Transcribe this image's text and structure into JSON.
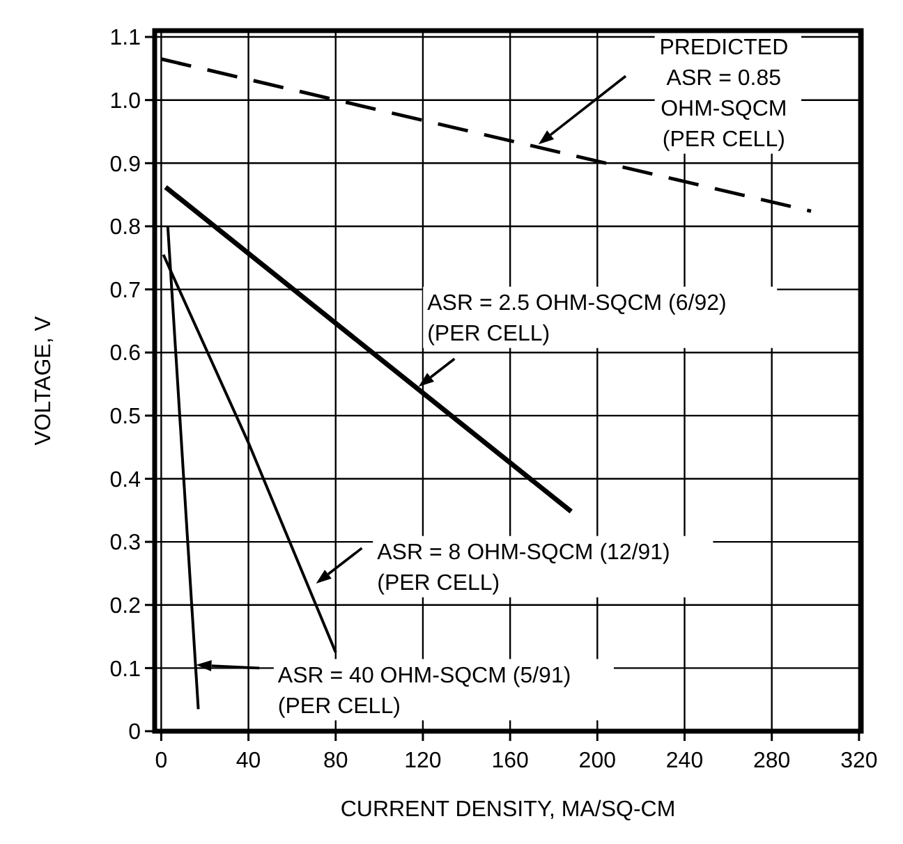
{
  "chart_data": {
    "type": "line",
    "xlabel": "CURRENT DENSITY, MA/SQ-CM",
    "ylabel": "VOLTAGE, V",
    "xlim": [
      -3,
      321
    ],
    "xticks": [
      0,
      40,
      80,
      120,
      160,
      200,
      240,
      280,
      320
    ],
    "ylim": [
      0,
      1.11
    ],
    "yticks": [
      0,
      0.1,
      0.2,
      0.3,
      0.4,
      0.5,
      0.6,
      0.7,
      0.8,
      0.9,
      {
        "value": 1,
        "label": "1.0"
      },
      1.1
    ],
    "grid": true,
    "marker": "none",
    "series": [
      {
        "color": "#000000",
        "line_style": "dashed",
        "x": [
          0,
          298
        ],
        "values": [
          1.065,
          0.824
        ]
      },
      {
        "color": "#000000",
        "line_style": "solid",
        "x": [
          2,
          188
        ],
        "values": [
          0.862,
          0.348
        ]
      },
      {
        "color": "#000000",
        "line_style": "solid",
        "x": [
          1,
          40,
          80
        ],
        "values": [
          0.755,
          0.457,
          0.125
        ]
      },
      {
        "color": "#000000",
        "line_style": "solid",
        "x": [
          3,
          17
        ],
        "values": [
          0.8,
          0.035
        ]
      }
    ],
    "annotations": [
      "PREDICTED\nASR = 0.85\nOHM-SQCM\n(PER CELL)",
      "ASR = 2.5 OHM-SQCM (6/92)\n(PER CELL)",
      "ASR = 8 OHM-SQCM (12/91)\n(PER CELL)",
      "ASR = 40 OHM-SQCM (5/91)\n(PER CELL)"
    ]
  }
}
